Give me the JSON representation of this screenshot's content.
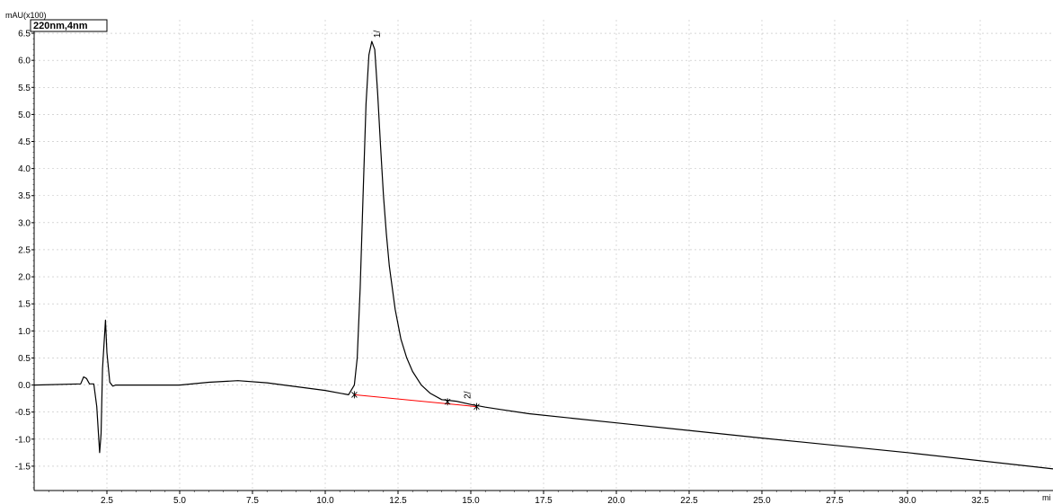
{
  "chart_data": {
    "type": "line",
    "channel_label": "220nm,4nm",
    "ylabel": "mAU(x100)",
    "xlabel": "mi",
    "xlim": [
      0,
      35
    ],
    "ylim": [
      -1.95,
      6.75
    ],
    "x_ticks": [
      2.5,
      5.0,
      7.5,
      10.0,
      12.5,
      15.0,
      17.5,
      20.0,
      22.5,
      25.0,
      27.5,
      30.0,
      32.5
    ],
    "x_tick_labels": [
      "2.5",
      "5.0",
      "7.5",
      "10.0",
      "12.5",
      "15.0",
      "17.5",
      "20.0",
      "22.5",
      "25.0",
      "27.5",
      "30.0",
      "32.5"
    ],
    "y_ticks": [
      6.5,
      6.0,
      5.5,
      5.0,
      4.5,
      4.0,
      3.5,
      3.0,
      2.5,
      2.0,
      1.5,
      1.0,
      0.5,
      0.0,
      -0.5,
      -1.0,
      -1.5
    ],
    "y_tick_labels": [
      "6.5",
      "6.0",
      "5.5",
      "5.0",
      "4.5",
      "4.0",
      "3.5",
      "3.0",
      "2.5",
      "2.0",
      "1.5",
      "1.0",
      "0.5",
      "0.0",
      "-0.5",
      "-1.0",
      "-1.5"
    ],
    "grid": true,
    "series": [
      {
        "color": "#000000",
        "x": [
          0.0,
          1.6,
          1.7,
          1.8,
          1.9,
          2.05,
          2.15,
          2.25,
          2.3,
          2.35,
          2.45,
          2.5,
          2.6,
          2.7,
          2.8,
          3.0,
          4.0,
          5.0,
          6.0,
          7.0,
          8.0,
          9.0,
          10.0,
          10.8,
          11.0,
          11.1,
          11.2,
          11.3,
          11.4,
          11.5,
          11.6,
          11.7,
          11.8,
          11.9,
          12.0,
          12.1,
          12.2,
          12.4,
          12.6,
          12.8,
          13.0,
          13.3,
          13.6,
          14.0,
          14.5,
          15.0,
          15.5,
          16.0,
          17.0,
          20.0,
          25.0,
          30.0,
          35.0
        ],
        "y": [
          0.0,
          0.02,
          0.15,
          0.12,
          0.02,
          0.02,
          -0.4,
          -1.25,
          -0.9,
          0.3,
          1.2,
          0.6,
          0.05,
          -0.02,
          0.0,
          0.0,
          0.0,
          0.0,
          0.05,
          0.08,
          0.04,
          -0.03,
          -0.1,
          -0.18,
          0.0,
          0.5,
          1.8,
          3.5,
          5.2,
          6.1,
          6.35,
          6.2,
          5.4,
          4.4,
          3.5,
          2.8,
          2.2,
          1.4,
          0.85,
          0.5,
          0.25,
          0.0,
          -0.15,
          -0.27,
          -0.3,
          -0.36,
          -0.41,
          -0.45,
          -0.53,
          -0.7,
          -0.98,
          -1.25,
          -1.55
        ]
      },
      {
        "color": "#ff0000",
        "x": [
          11.0,
          15.2
        ],
        "y": [
          -0.18,
          -0.4
        ]
      }
    ],
    "peaks": [
      {
        "label": "1/",
        "x": 11.7,
        "y": 6.35
      },
      {
        "label": "2/",
        "x": 14.8,
        "y": -0.32
      }
    ],
    "integration_marks": [
      {
        "x": 11.0,
        "y": -0.18
      },
      {
        "x": 14.2,
        "y": -0.31
      },
      {
        "x": 15.2,
        "y": -0.4
      }
    ]
  }
}
